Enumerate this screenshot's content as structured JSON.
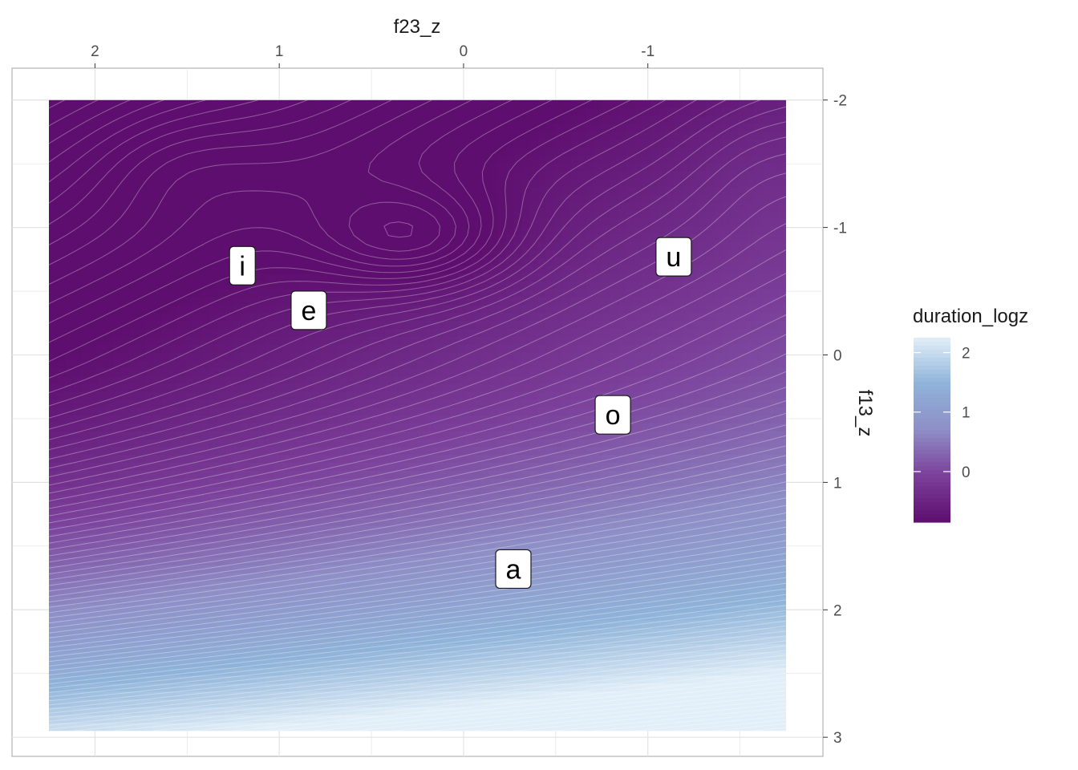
{
  "chart_data": {
    "type": "heatmap",
    "title": "",
    "xlabel": "f23_z",
    "ylabel": "f13_z",
    "x_axis": {
      "position": "top",
      "reversed": true,
      "range": [
        2.45,
        -1.95
      ],
      "ticks": [
        2,
        1,
        0,
        -1
      ],
      "tick_labels": [
        "2",
        "1",
        "0",
        "-1"
      ]
    },
    "y_axis": {
      "position": "right",
      "reversed": true,
      "range": [
        -2.25,
        3.15
      ],
      "ticks": [
        -2,
        -1,
        0,
        1,
        2,
        3
      ],
      "tick_labels": [
        "-2",
        "-1",
        "0",
        "1",
        "2",
        "3"
      ]
    },
    "raster_extent": {
      "x": [
        2.25,
        -1.75
      ],
      "y": [
        -2.0,
        2.95
      ]
    },
    "fill_variable": "duration_logz",
    "fill_range": [
      -0.85,
      2.25
    ],
    "fill_palette": [
      "#5e0e6e",
      "#7b3f9a",
      "#8e8ec6",
      "#8fb3d9",
      "#e2eff8"
    ],
    "contours": {
      "color": "#ffffff",
      "spacing": 0.05
    },
    "grid": true,
    "legend": {
      "title": "duration_logz",
      "placement": "right",
      "ticks": [
        0,
        1,
        2
      ],
      "tick_labels": [
        "0",
        "1",
        "2"
      ]
    },
    "points": [
      {
        "label": "i",
        "x": 1.2,
        "y": -0.7
      },
      {
        "label": "e",
        "x": 0.84,
        "y": -0.35
      },
      {
        "label": "u",
        "x": -1.14,
        "y": -0.77
      },
      {
        "label": "o",
        "x": -0.81,
        "y": 0.47
      },
      {
        "label": "a",
        "x": -0.27,
        "y": 1.68
      }
    ]
  }
}
